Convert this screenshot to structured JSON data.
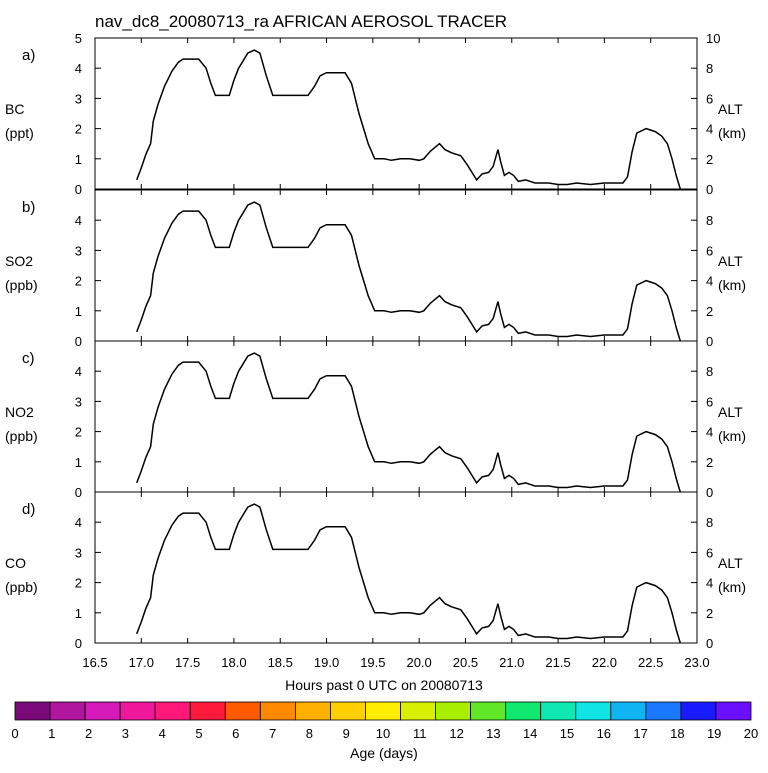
{
  "title": "nav_dc8_20080713_ra AFRICAN AEROSOL TRACER",
  "chart_data": {
    "type": "line",
    "xlabel": "Hours past 0 UTC on 20080713",
    "xlim": [
      16.5,
      23.0
    ],
    "x_ticks": [
      "16.5",
      "17.0",
      "17.5",
      "18.0",
      "18.5",
      "19.0",
      "19.5",
      "20.0",
      "20.5",
      "21.0",
      "21.5",
      "22.0",
      "22.5",
      "23.0"
    ],
    "right_axis": {
      "label": "ALT",
      "unit": "(km)",
      "range": [
        0,
        10
      ]
    },
    "altitude_km": {
      "name": "ALT",
      "points": [
        [
          16.95,
          0.6
        ],
        [
          17.0,
          1.4
        ],
        [
          17.05,
          2.3
        ],
        [
          17.1,
          3.0
        ],
        [
          17.13,
          4.5
        ],
        [
          17.18,
          5.6
        ],
        [
          17.25,
          6.8
        ],
        [
          17.33,
          7.8
        ],
        [
          17.4,
          8.4
        ],
        [
          17.45,
          8.6
        ],
        [
          17.55,
          8.6
        ],
        [
          17.62,
          8.6
        ],
        [
          17.7,
          8.0
        ],
        [
          17.75,
          7.0
        ],
        [
          17.8,
          6.2
        ],
        [
          17.95,
          6.2
        ],
        [
          18.0,
          7.2
        ],
        [
          18.05,
          8.0
        ],
        [
          18.15,
          9.0
        ],
        [
          18.22,
          9.2
        ],
        [
          18.28,
          9.0
        ],
        [
          18.35,
          7.5
        ],
        [
          18.42,
          6.2
        ],
        [
          18.55,
          6.2
        ],
        [
          18.8,
          6.2
        ],
        [
          18.87,
          6.8
        ],
        [
          18.93,
          7.5
        ],
        [
          19.0,
          7.7
        ],
        [
          19.2,
          7.7
        ],
        [
          19.27,
          7.0
        ],
        [
          19.35,
          5.0
        ],
        [
          19.45,
          3.0
        ],
        [
          19.52,
          2.0
        ],
        [
          19.62,
          2.0
        ],
        [
          19.7,
          1.9
        ],
        [
          19.8,
          2.0
        ],
        [
          19.9,
          2.0
        ],
        [
          20.0,
          1.9
        ],
        [
          20.05,
          2.0
        ],
        [
          20.12,
          2.5
        ],
        [
          20.18,
          2.8
        ],
        [
          20.22,
          3.0
        ],
        [
          20.28,
          2.6
        ],
        [
          20.35,
          2.4
        ],
        [
          20.45,
          2.2
        ],
        [
          20.52,
          1.6
        ],
        [
          20.58,
          1.0
        ],
        [
          20.62,
          0.6
        ],
        [
          20.68,
          1.0
        ],
        [
          20.75,
          1.1
        ],
        [
          20.8,
          1.5
        ],
        [
          20.85,
          2.6
        ],
        [
          20.88,
          1.8
        ],
        [
          20.92,
          0.9
        ],
        [
          20.97,
          1.1
        ],
        [
          21.02,
          0.9
        ],
        [
          21.07,
          0.5
        ],
        [
          21.15,
          0.6
        ],
        [
          21.25,
          0.4
        ],
        [
          21.4,
          0.4
        ],
        [
          21.5,
          0.3
        ],
        [
          21.6,
          0.3
        ],
        [
          21.7,
          0.4
        ],
        [
          21.85,
          0.3
        ],
        [
          22.0,
          0.4
        ],
        [
          22.2,
          0.4
        ],
        [
          22.25,
          0.8
        ],
        [
          22.3,
          2.5
        ],
        [
          22.35,
          3.7
        ],
        [
          22.45,
          4.0
        ],
        [
          22.55,
          3.8
        ],
        [
          22.62,
          3.5
        ],
        [
          22.68,
          3.0
        ],
        [
          22.73,
          2.0
        ],
        [
          22.78,
          0.8
        ],
        [
          22.82,
          0.0
        ]
      ]
    },
    "panels": [
      {
        "label": "a)",
        "species": "BC",
        "unit": "(ppt)",
        "ylim": [
          0,
          5
        ],
        "y_ticks": [
          "0",
          "1",
          "2",
          "3",
          "4",
          "5"
        ],
        "series": []
      },
      {
        "label": "b)",
        "species": "SO2",
        "unit": "(ppb)",
        "ylim": [
          0,
          5
        ],
        "y_ticks": [
          "0",
          "1",
          "2",
          "3",
          "4"
        ],
        "series": []
      },
      {
        "label": "c)",
        "species": "NO2",
        "unit": "(ppb)",
        "ylim": [
          0,
          5
        ],
        "y_ticks": [
          "0",
          "1",
          "2",
          "3",
          "4"
        ],
        "series": []
      },
      {
        "label": "d)",
        "species": "CO",
        "unit": "(ppb)",
        "ylim": [
          0,
          5
        ],
        "y_ticks": [
          "0",
          "1",
          "2",
          "3",
          "4"
        ],
        "series": []
      }
    ],
    "right_ticks_top": [
      "0",
      "2",
      "4",
      "6",
      "8",
      "10"
    ],
    "right_ticks_other": [
      "0",
      "2",
      "4",
      "6",
      "8"
    ],
    "colorbar": {
      "label": "Age (days)",
      "tick_labels": [
        "0",
        "1",
        "2",
        "3",
        "4",
        "5",
        "6",
        "7",
        "8",
        "9",
        "10",
        "11",
        "12",
        "13",
        "14",
        "15",
        "16",
        "17",
        "18",
        "19",
        "20"
      ],
      "colors": [
        "#7a0a7a",
        "#b0169e",
        "#d41ab8",
        "#f0189a",
        "#ff1878",
        "#ff1a3c",
        "#ff5a00",
        "#ff8a00",
        "#ffb000",
        "#ffd000",
        "#ffee00",
        "#d8f000",
        "#a8ee00",
        "#60e828",
        "#10e870",
        "#10e8b4",
        "#10e4e4",
        "#10b4f0",
        "#1a78ff",
        "#1a1aff",
        "#6a10ff"
      ]
    }
  }
}
